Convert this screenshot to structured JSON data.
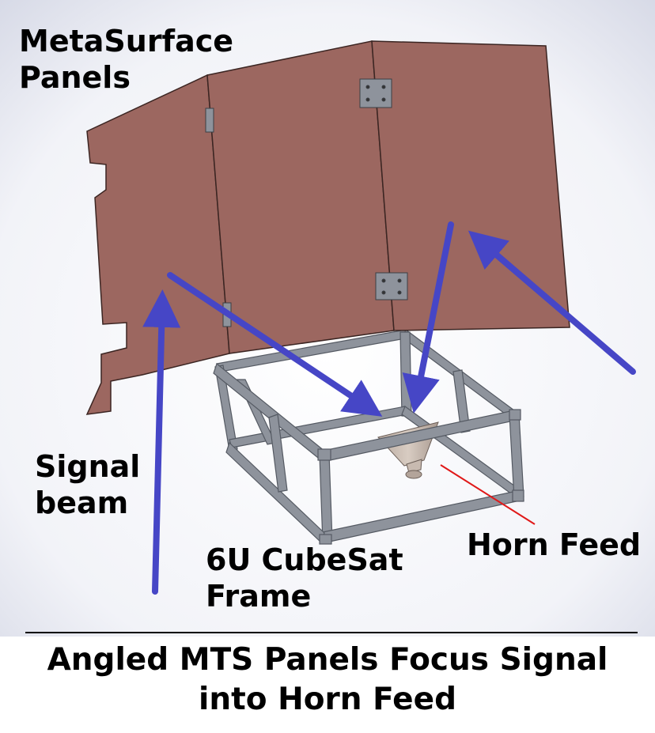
{
  "labels": {
    "metasurface_line1": "MetaSurface",
    "metasurface_line2": "Panels",
    "signal_line1": "Signal",
    "signal_line2": "beam",
    "cubesat_line1": "6U CubeSat",
    "cubesat_line2": "Frame",
    "horn_feed": "Horn Feed"
  },
  "caption": {
    "line1": "Angled MTS Panels Focus Signal",
    "line2": "into Horn Feed"
  },
  "colors": {
    "panel": "#9c6760",
    "frame": "#8e939c",
    "arrow": "#4646c6",
    "pointer_line": "#e01818"
  }
}
